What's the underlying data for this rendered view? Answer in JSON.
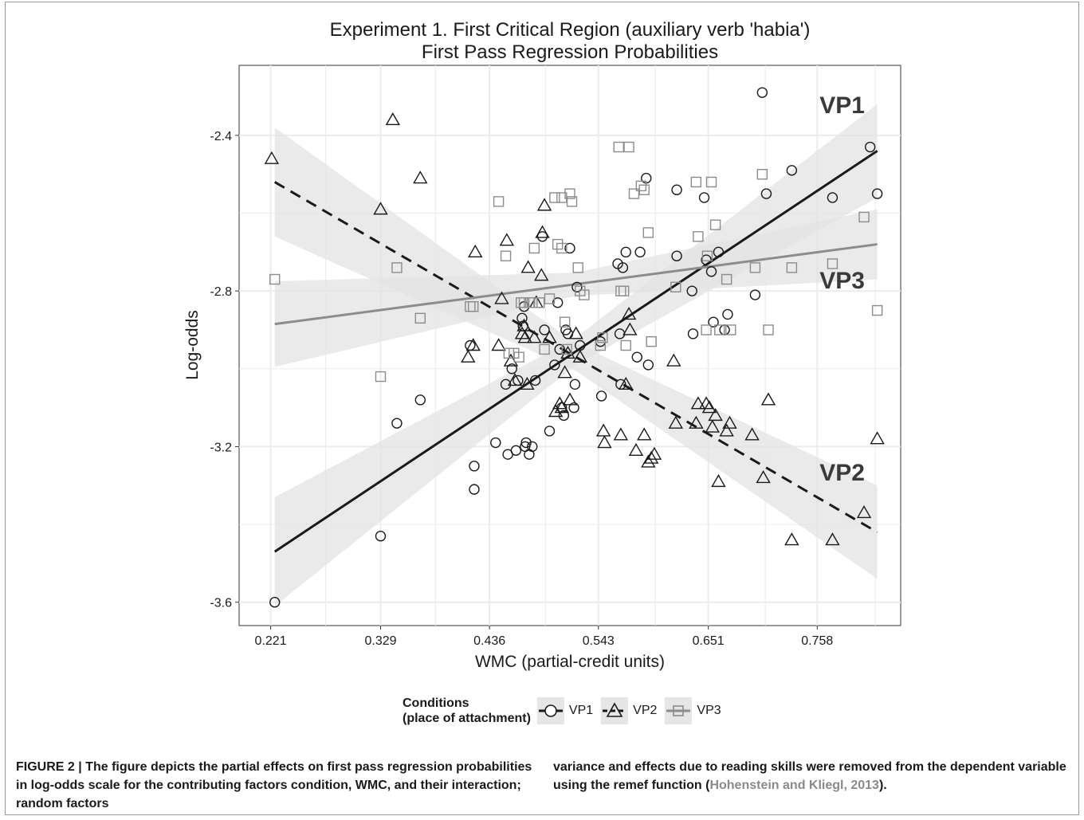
{
  "chart_data": {
    "type": "scatter",
    "title": "Experiment 1. First Critical Region (auxiliary verb 'habia')",
    "subtitle": "First Pass Regression Probabilities",
    "xlabel": "WMC (partial-credit units)",
    "ylabel": "Log-odds",
    "xlim": [
      0.19,
      0.84
    ],
    "ylim": [
      -3.66,
      -2.22
    ],
    "x_ticks": [
      0.221,
      0.329,
      0.436,
      0.543,
      0.651,
      0.758
    ],
    "x_tick_labels": [
      "0.221",
      "0.329",
      "0.436",
      "0.543",
      "0.651",
      "0.758"
    ],
    "y_ticks": [
      -3.6,
      -3.2,
      -2.8,
      -2.4
    ],
    "y_tick_labels": [
      "-3.6",
      "-3.2",
      "-2.8",
      "-2.4"
    ],
    "grid": true,
    "legend_position": "bottom",
    "legend_title": "Conditions\n(place of attachment)",
    "series": [
      {
        "name": "VP1",
        "marker": "circle",
        "line_style": "solid",
        "color": "#1a1a1a",
        "annotation": "VP1",
        "fit": {
          "x": [
            0.225,
            0.817
          ],
          "y": [
            -3.47,
            -2.44
          ]
        },
        "band_halfwidth": {
          "x": [
            0.225,
            0.52,
            0.817
          ],
          "w": [
            0.14,
            0.035,
            0.12
          ]
        },
        "points": [
          [
            0.225,
            -3.6
          ],
          [
            0.329,
            -3.43
          ],
          [
            0.345,
            -3.14
          ],
          [
            0.368,
            -3.08
          ],
          [
            0.417,
            -2.94
          ],
          [
            0.421,
            -3.25
          ],
          [
            0.421,
            -3.31
          ],
          [
            0.442,
            -3.19
          ],
          [
            0.452,
            -3.04
          ],
          [
            0.454,
            -3.22
          ],
          [
            0.458,
            -3.0
          ],
          [
            0.462,
            -3.21
          ],
          [
            0.464,
            -3.03
          ],
          [
            0.468,
            -2.87
          ],
          [
            0.469,
            -2.89
          ],
          [
            0.47,
            -2.84
          ],
          [
            0.471,
            -3.2
          ],
          [
            0.472,
            -3.19
          ],
          [
            0.475,
            -3.22
          ],
          [
            0.478,
            -3.2
          ],
          [
            0.481,
            -3.03
          ],
          [
            0.488,
            -2.66
          ],
          [
            0.49,
            -2.9
          ],
          [
            0.495,
            -3.16
          ],
          [
            0.5,
            -2.99
          ],
          [
            0.503,
            -2.83
          ],
          [
            0.505,
            -2.95
          ],
          [
            0.507,
            -3.1
          ],
          [
            0.509,
            -3.12
          ],
          [
            0.511,
            -2.9
          ],
          [
            0.513,
            -2.91
          ],
          [
            0.515,
            -2.69
          ],
          [
            0.519,
            -3.1
          ],
          [
            0.52,
            -3.04
          ],
          [
            0.522,
            -2.79
          ],
          [
            0.525,
            -2.94
          ],
          [
            0.545,
            -2.93
          ],
          [
            0.546,
            -3.07
          ],
          [
            0.562,
            -2.73
          ],
          [
            0.564,
            -2.91
          ],
          [
            0.565,
            -3.04
          ],
          [
            0.567,
            -2.74
          ],
          [
            0.57,
            -2.7
          ],
          [
            0.581,
            -2.97
          ],
          [
            0.584,
            -2.7
          ],
          [
            0.59,
            -2.51
          ],
          [
            0.592,
            -2.99
          ],
          [
            0.62,
            -2.54
          ],
          [
            0.62,
            -2.71
          ],
          [
            0.635,
            -2.8
          ],
          [
            0.636,
            -2.91
          ],
          [
            0.647,
            -2.56
          ],
          [
            0.649,
            -2.72
          ],
          [
            0.654,
            -2.75
          ],
          [
            0.656,
            -2.88
          ],
          [
            0.661,
            -2.7
          ],
          [
            0.667,
            -2.9
          ],
          [
            0.67,
            -2.86
          ],
          [
            0.697,
            -2.81
          ],
          [
            0.704,
            -2.29
          ],
          [
            0.708,
            -2.55
          ],
          [
            0.733,
            -2.49
          ],
          [
            0.773,
            -2.56
          ],
          [
            0.81,
            -2.43
          ],
          [
            0.817,
            -2.55
          ]
        ]
      },
      {
        "name": "VP2",
        "marker": "triangle",
        "line_style": "dashed",
        "color": "#1a1a1a",
        "annotation": "VP2",
        "fit": {
          "x": [
            0.225,
            0.817
          ],
          "y": [
            -2.52,
            -3.42
          ]
        },
        "band_halfwidth": {
          "x": [
            0.225,
            0.52,
            0.817
          ],
          "w": [
            0.14,
            0.035,
            0.12
          ]
        },
        "points": [
          [
            0.222,
            -2.46
          ],
          [
            0.329,
            -2.59
          ],
          [
            0.341,
            -2.36
          ],
          [
            0.368,
            -2.51
          ],
          [
            0.415,
            -2.97
          ],
          [
            0.42,
            -2.94
          ],
          [
            0.422,
            -2.7
          ],
          [
            0.445,
            -2.94
          ],
          [
            0.448,
            -2.82
          ],
          [
            0.453,
            -2.67
          ],
          [
            0.457,
            -2.98
          ],
          [
            0.461,
            -3.03
          ],
          [
            0.468,
            -2.91
          ],
          [
            0.47,
            -2.89
          ],
          [
            0.471,
            -2.92
          ],
          [
            0.473,
            -3.04
          ],
          [
            0.474,
            -2.74
          ],
          [
            0.48,
            -2.92
          ],
          [
            0.482,
            -2.83
          ],
          [
            0.487,
            -2.76
          ],
          [
            0.488,
            -2.65
          ],
          [
            0.49,
            -2.58
          ],
          [
            0.495,
            -2.92
          ],
          [
            0.501,
            -3.11
          ],
          [
            0.505,
            -3.09
          ],
          [
            0.507,
            -3.1
          ],
          [
            0.51,
            -3.01
          ],
          [
            0.513,
            -2.96
          ],
          [
            0.515,
            -3.08
          ],
          [
            0.521,
            -2.91
          ],
          [
            0.525,
            -2.97
          ],
          [
            0.548,
            -3.16
          ],
          [
            0.549,
            -3.19
          ],
          [
            0.565,
            -3.17
          ],
          [
            0.57,
            -3.04
          ],
          [
            0.573,
            -2.86
          ],
          [
            0.574,
            -2.9
          ],
          [
            0.58,
            -3.21
          ],
          [
            0.588,
            -3.17
          ],
          [
            0.592,
            -3.24
          ],
          [
            0.595,
            -3.23
          ],
          [
            0.598,
            -3.22
          ],
          [
            0.617,
            -2.98
          ],
          [
            0.619,
            -3.14
          ],
          [
            0.639,
            -3.14
          ],
          [
            0.641,
            -3.09
          ],
          [
            0.649,
            -3.09
          ],
          [
            0.652,
            -3.1
          ],
          [
            0.655,
            -3.15
          ],
          [
            0.658,
            -3.12
          ],
          [
            0.661,
            -3.29
          ],
          [
            0.669,
            -3.16
          ],
          [
            0.672,
            -3.14
          ],
          [
            0.694,
            -3.17
          ],
          [
            0.705,
            -3.28
          ],
          [
            0.71,
            -3.08
          ],
          [
            0.733,
            -3.44
          ],
          [
            0.773,
            -3.44
          ],
          [
            0.804,
            -3.37
          ],
          [
            0.817,
            -3.18
          ]
        ]
      },
      {
        "name": "VP3",
        "marker": "square",
        "line_style": "solid",
        "color": "#8c8c8c",
        "annotation": "VP3",
        "fit": {
          "x": [
            0.225,
            0.817
          ],
          "y": [
            -2.885,
            -2.68
          ]
        },
        "band_halfwidth": {
          "x": [
            0.225,
            0.52,
            0.817
          ],
          "w": [
            0.11,
            0.03,
            0.09
          ]
        },
        "points": [
          [
            0.225,
            -2.77
          ],
          [
            0.329,
            -3.02
          ],
          [
            0.345,
            -2.74
          ],
          [
            0.368,
            -2.87
          ],
          [
            0.417,
            -2.84
          ],
          [
            0.42,
            -2.84
          ],
          [
            0.445,
            -2.57
          ],
          [
            0.452,
            -2.71
          ],
          [
            0.455,
            -2.96
          ],
          [
            0.46,
            -2.96
          ],
          [
            0.465,
            -2.97
          ],
          [
            0.467,
            -2.83
          ],
          [
            0.47,
            -2.83
          ],
          [
            0.475,
            -2.83
          ],
          [
            0.478,
            -2.83
          ],
          [
            0.48,
            -2.69
          ],
          [
            0.485,
            -2.83
          ],
          [
            0.49,
            -2.95
          ],
          [
            0.495,
            -2.82
          ],
          [
            0.5,
            -2.56
          ],
          [
            0.503,
            -2.68
          ],
          [
            0.507,
            -2.69
          ],
          [
            0.507,
            -2.56
          ],
          [
            0.51,
            -2.88
          ],
          [
            0.512,
            -2.95
          ],
          [
            0.515,
            -2.55
          ],
          [
            0.517,
            -2.57
          ],
          [
            0.523,
            -2.74
          ],
          [
            0.525,
            -2.8
          ],
          [
            0.529,
            -2.81
          ],
          [
            0.545,
            -2.94
          ],
          [
            0.547,
            -2.92
          ],
          [
            0.563,
            -2.43
          ],
          [
            0.565,
            -2.8
          ],
          [
            0.568,
            -2.8
          ],
          [
            0.57,
            -2.94
          ],
          [
            0.573,
            -2.43
          ],
          [
            0.578,
            -2.55
          ],
          [
            0.585,
            -2.53
          ],
          [
            0.588,
            -2.54
          ],
          [
            0.592,
            -2.65
          ],
          [
            0.595,
            -2.93
          ],
          [
            0.619,
            -2.79
          ],
          [
            0.639,
            -2.52
          ],
          [
            0.641,
            -2.66
          ],
          [
            0.649,
            -2.9
          ],
          [
            0.65,
            -2.71
          ],
          [
            0.654,
            -2.52
          ],
          [
            0.658,
            -2.63
          ],
          [
            0.662,
            -2.9
          ],
          [
            0.669,
            -2.77
          ],
          [
            0.673,
            -2.9
          ],
          [
            0.697,
            -2.74
          ],
          [
            0.704,
            -2.5
          ],
          [
            0.71,
            -2.9
          ],
          [
            0.733,
            -2.74
          ],
          [
            0.773,
            -2.73
          ],
          [
            0.804,
            -2.61
          ],
          [
            0.817,
            -2.85
          ]
        ]
      }
    ]
  },
  "legend": {
    "title_line1": "Conditions",
    "title_line2": "(place of attachment)",
    "items": [
      "VP1",
      "VP2",
      "VP3"
    ]
  },
  "caption": {
    "label": "FIGURE 2 |",
    "text_left": "The figure depicts the partial effects on first pass regression probabilities in log-odds scale for the contributing factors condition, WMC, and their interaction; random factors",
    "text_right": "variance and effects due to reading skills were removed from the dependent variable using the remef function (",
    "citation": "Hohenstein and Kliegl, 2013",
    "text_right_end": ")."
  },
  "colors": {
    "panel_bg": "#ffffff",
    "grid": "#ececec",
    "band": "#e3e3e3",
    "vp1": "#1a1a1a",
    "vp2": "#1a1a1a",
    "vp3": "#8c8c8c",
    "citation": "#8a8a8a"
  }
}
